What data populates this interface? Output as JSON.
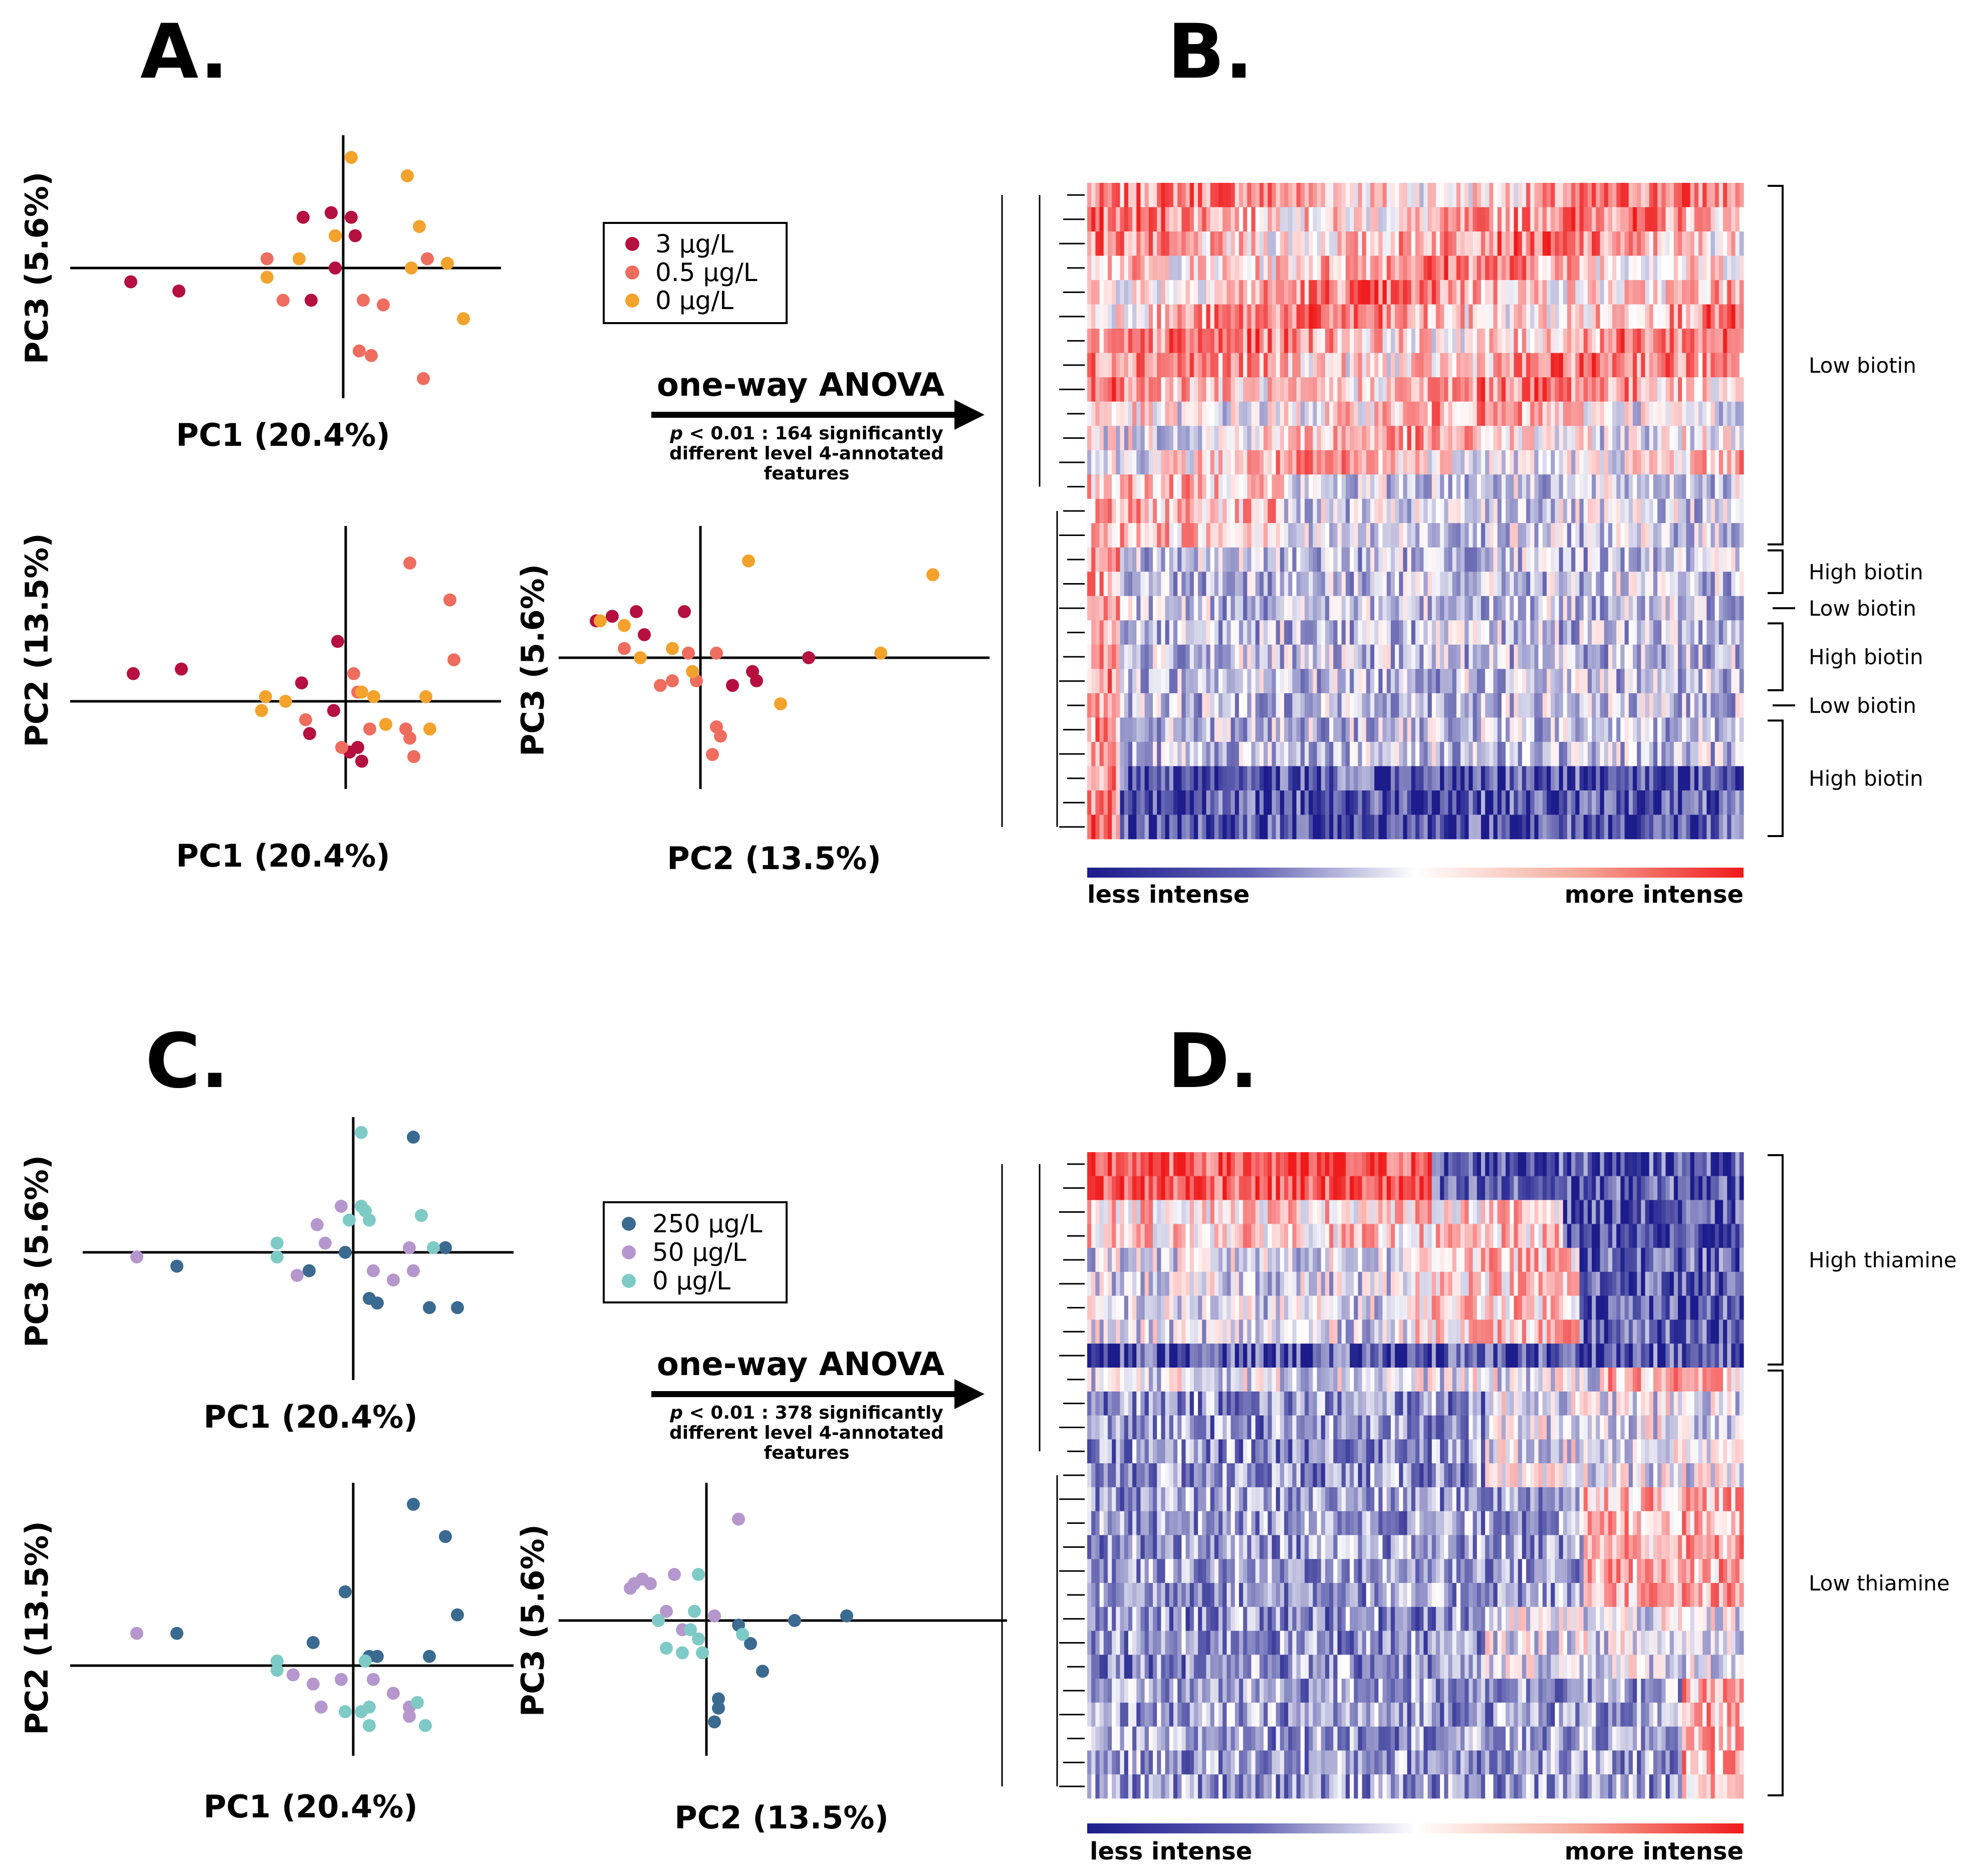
{
  "panels": {
    "A": {
      "label": "A."
    },
    "B": {
      "label": "B."
    },
    "C": {
      "label": "C."
    },
    "D": {
      "label": "D."
    }
  },
  "legend_biotin": [
    {
      "label": "3 µg/L",
      "color": "#b5103f"
    },
    {
      "label": "0.5 µg/L",
      "color": "#ee6d5f"
    },
    {
      "label": "0 µg/L",
      "color": "#f3a22c"
    }
  ],
  "legend_thiamine": [
    {
      "label": "250 µg/L",
      "color": "#3b6a90"
    },
    {
      "label": "50 µg/L",
      "color": "#b597cd"
    },
    {
      "label": "0 µg/L",
      "color": "#7ecac6"
    }
  ],
  "anova_top": {
    "title": "one-way ANOVA",
    "p": "p",
    "line1": " < 0.01 : 164 significantly",
    "line2": "different level 4-annotated",
    "line3": "features"
  },
  "anova_bottom": {
    "title": "one-way ANOVA",
    "p": "p",
    "line1": " < 0.01 : 378 significantly",
    "line2": "different level 4-annotated",
    "line3": "features"
  },
  "axis_labels": {
    "pc1": "PC1 (20.4%)",
    "pc2": "PC2 (13.5%)",
    "pc3": "PC3 (5.6%)"
  },
  "heatmap_B_groups": [
    "Low biotin",
    "High biotin",
    "Low biotin",
    "High biotin",
    "Low biotin",
    "High biotin"
  ],
  "heatmap_D_groups": [
    "High thiamine",
    "Low thiamine"
  ],
  "colorbar": {
    "low_label": "less intense",
    "high_label": "more intense",
    "low_color": "#1c1c8c",
    "mid_color": "#ffffff",
    "high_color": "#f01a1a"
  },
  "chart_data": [
    {
      "type": "scatter",
      "panel": "A",
      "xlabel": "PC1 (20.4%)",
      "ylabel": "PC3 (5.6%)",
      "series": [
        {
          "name": "3 µg/L",
          "points": [
            [
              -5.3,
              -0.3
            ],
            [
              -4.1,
              -0.5
            ],
            [
              -1.0,
              1.1
            ],
            [
              -0.8,
              -0.7
            ],
            [
              -0.3,
              1.2
            ],
            [
              -0.2,
              0.0
            ],
            [
              0.2,
              1.1
            ],
            [
              0.3,
              0.7
            ]
          ]
        },
        {
          "name": "0.5 µg/L",
          "points": [
            [
              -1.9,
              0.2
            ],
            [
              -1.5,
              -0.7
            ],
            [
              0.5,
              -0.7
            ],
            [
              0.4,
              -1.8
            ],
            [
              1.0,
              -0.8
            ],
            [
              2.0,
              -2.4
            ],
            [
              2.1,
              0.2
            ],
            [
              0.7,
              -1.9
            ]
          ]
        },
        {
          "name": "0 µg/L",
          "points": [
            [
              -1.9,
              -0.2
            ],
            [
              -1.1,
              0.2
            ],
            [
              0.2,
              2.4
            ],
            [
              -0.2,
              0.7
            ],
            [
              1.6,
              2.0
            ],
            [
              1.7,
              0.0
            ],
            [
              1.9,
              0.9
            ],
            [
              2.6,
              0.1
            ],
            [
              3.0,
              -1.1
            ]
          ]
        }
      ]
    },
    {
      "type": "scatter",
      "panel": "A",
      "xlabel": "PC1 (20.4%)",
      "ylabel": "PC2 (13.5%)",
      "series": [
        {
          "name": "3 µg/L",
          "points": [
            [
              -5.3,
              0.6
            ],
            [
              -4.1,
              0.7
            ],
            [
              -1.1,
              0.4
            ],
            [
              -0.2,
              1.3
            ],
            [
              -0.3,
              -0.2
            ],
            [
              -0.9,
              -0.7
            ],
            [
              0.3,
              -1.0
            ],
            [
              0.4,
              -1.3
            ],
            [
              0.1,
              -1.1
            ]
          ]
        },
        {
          "name": "0.5 µg/L",
          "points": [
            [
              -1.0,
              -0.4
            ],
            [
              -0.1,
              -1.0
            ],
            [
              0.2,
              0.6
            ],
            [
              0.6,
              -0.6
            ],
            [
              1.6,
              -0.8
            ],
            [
              1.7,
              -1.2
            ],
            [
              1.6,
              3.0
            ],
            [
              2.6,
              2.2
            ],
            [
              2.7,
              0.9
            ],
            [
              1.5,
              -0.6
            ],
            [
              0.3,
              0.2
            ]
          ]
        },
        {
          "name": "0 µg/L",
          "points": [
            [
              -2.0,
              0.1
            ],
            [
              -2.1,
              -0.2
            ],
            [
              -1.5,
              0.0
            ],
            [
              0.4,
              0.2
            ],
            [
              0.7,
              0.1
            ],
            [
              1.0,
              -0.5
            ],
            [
              2.0,
              0.1
            ],
            [
              2.1,
              -0.6
            ]
          ]
        }
      ]
    },
    {
      "type": "scatter",
      "panel": "A",
      "xlabel": "PC2 (13.5%)",
      "ylabel": "PC3 (5.6%)",
      "series": [
        {
          "name": "3 µg/L",
          "points": [
            [
              -2.6,
              0.8
            ],
            [
              -2.2,
              0.9
            ],
            [
              -1.6,
              1.0
            ],
            [
              -1.4,
              0.5
            ],
            [
              -0.4,
              1.0
            ],
            [
              0.8,
              -0.6
            ],
            [
              1.3,
              -0.3
            ],
            [
              1.4,
              -0.5
            ],
            [
              2.7,
              0.0
            ]
          ]
        },
        {
          "name": "0.5 µg/L",
          "points": [
            [
              -1.9,
              0.2
            ],
            [
              -1.0,
              -0.6
            ],
            [
              -0.7,
              -0.5
            ],
            [
              -0.1,
              -0.5
            ],
            [
              -0.3,
              0.1
            ],
            [
              0.4,
              0.1
            ],
            [
              0.4,
              -1.5
            ],
            [
              0.5,
              -1.7
            ],
            [
              0.3,
              -2.1
            ]
          ]
        },
        {
          "name": "0 µg/L",
          "points": [
            [
              -2.5,
              0.8
            ],
            [
              -1.9,
              0.7
            ],
            [
              -1.5,
              0.0
            ],
            [
              -0.7,
              0.2
            ],
            [
              -0.2,
              -0.3
            ],
            [
              1.2,
              2.1
            ],
            [
              2.0,
              -1.0
            ],
            [
              4.5,
              0.1
            ],
            [
              5.8,
              1.8
            ]
          ]
        }
      ]
    },
    {
      "type": "heatmap",
      "panel": "B",
      "rows": 27,
      "colorscale": [
        "less intense",
        "more intense"
      ],
      "row_groups": [
        {
          "label": "Low biotin",
          "rows": 15
        },
        {
          "label": "High biotin",
          "rows": 2
        },
        {
          "label": "Low biotin",
          "rows": 1
        },
        {
          "label": "High biotin",
          "rows": 3
        },
        {
          "label": "Low biotin",
          "rows": 1
        },
        {
          "label": "High biotin",
          "rows": 5
        }
      ]
    },
    {
      "type": "scatter",
      "panel": "C",
      "xlabel": "PC1 (20.4%)",
      "ylabel": "PC3 (5.6%)",
      "series": [
        {
          "name": "250 µg/L",
          "points": [
            [
              -4.4,
              -0.3
            ],
            [
              -1.1,
              -0.4
            ],
            [
              -0.2,
              0.0
            ],
            [
              0.4,
              -1.0
            ],
            [
              0.6,
              -1.1
            ],
            [
              1.5,
              2.5
            ],
            [
              2.3,
              0.1
            ],
            [
              2.6,
              -1.2
            ],
            [
              1.9,
              -1.2
            ]
          ]
        },
        {
          "name": "50 µg/L",
          "points": [
            [
              -5.4,
              -0.1
            ],
            [
              -1.4,
              -0.5
            ],
            [
              -0.9,
              0.6
            ],
            [
              -0.7,
              0.2
            ],
            [
              -0.3,
              1.0
            ],
            [
              1.4,
              0.1
            ],
            [
              1.0,
              -0.6
            ],
            [
              1.5,
              -0.4
            ],
            [
              0.5,
              -0.4
            ]
          ]
        },
        {
          "name": "0 µg/L",
          "points": [
            [
              -1.9,
              0.2
            ],
            [
              -1.9,
              -0.1
            ],
            [
              -0.1,
              0.7
            ],
            [
              0.2,
              1.0
            ],
            [
              0.3,
              0.9
            ],
            [
              0.4,
              0.7
            ],
            [
              0.2,
              2.6
            ],
            [
              1.7,
              0.8
            ],
            [
              2.0,
              0.1
            ]
          ]
        }
      ]
    },
    {
      "type": "scatter",
      "panel": "C",
      "xlabel": "PC1 (20.4%)",
      "ylabel": "PC2 (13.5%)",
      "series": [
        {
          "name": "250 µg/L",
          "points": [
            [
              -4.4,
              0.7
            ],
            [
              -1.0,
              0.5
            ],
            [
              -0.2,
              1.6
            ],
            [
              0.4,
              0.2
            ],
            [
              0.6,
              0.2
            ],
            [
              1.5,
              3.5
            ],
            [
              1.9,
              0.2
            ],
            [
              2.3,
              2.8
            ],
            [
              2.6,
              1.1
            ]
          ]
        },
        {
          "name": "50 µg/L",
          "points": [
            [
              -5.4,
              0.7
            ],
            [
              -1.5,
              -0.2
            ],
            [
              -1.0,
              -0.4
            ],
            [
              -0.8,
              -0.9
            ],
            [
              -0.3,
              -0.3
            ],
            [
              0.5,
              -0.3
            ],
            [
              1.0,
              -0.6
            ],
            [
              1.4,
              -0.9
            ],
            [
              1.4,
              -1.1
            ]
          ]
        },
        {
          "name": "0 µg/L",
          "points": [
            [
              -1.9,
              0.1
            ],
            [
              -1.9,
              -0.1
            ],
            [
              -0.2,
              -1.0
            ],
            [
              0.2,
              -1.0
            ],
            [
              0.3,
              0.1
            ],
            [
              0.4,
              -0.9
            ],
            [
              0.4,
              -1.3
            ],
            [
              1.6,
              -0.8
            ],
            [
              1.8,
              -1.3
            ]
          ]
        }
      ]
    },
    {
      "type": "scatter",
      "panel": "C",
      "xlabel": "PC2 (13.5%)",
      "ylabel": "PC3 (5.6%)",
      "series": [
        {
          "name": "250 µg/L",
          "points": [
            [
              0.8,
              -0.1
            ],
            [
              1.1,
              -0.5
            ],
            [
              1.4,
              -1.1
            ],
            [
              0.3,
              -1.7
            ],
            [
              0.3,
              -1.9
            ],
            [
              0.2,
              -2.2
            ],
            [
              2.2,
              0.0
            ],
            [
              3.5,
              0.1
            ]
          ]
        },
        {
          "name": "50 µg/L",
          "points": [
            [
              -1.9,
              0.7
            ],
            [
              -1.8,
              0.8
            ],
            [
              -1.6,
              0.9
            ],
            [
              -1.4,
              0.8
            ],
            [
              -1.0,
              0.2
            ],
            [
              -0.8,
              1.0
            ],
            [
              -0.6,
              -0.2
            ],
            [
              0.2,
              0.1
            ],
            [
              0.8,
              2.2
            ]
          ]
        },
        {
          "name": "0 µg/L",
          "points": [
            [
              -1.2,
              0.0
            ],
            [
              -1.0,
              -0.6
            ],
            [
              -0.6,
              -0.7
            ],
            [
              -0.4,
              -0.2
            ],
            [
              -0.3,
              0.2
            ],
            [
              -0.2,
              1.0
            ],
            [
              -0.2,
              -0.4
            ],
            [
              -0.1,
              -0.7
            ],
            [
              0.9,
              -0.3
            ]
          ]
        }
      ]
    },
    {
      "type": "heatmap",
      "panel": "D",
      "rows": 27,
      "colorscale": [
        "less intense",
        "more intense"
      ],
      "row_groups": [
        {
          "label": "High thiamine",
          "rows": 9
        },
        {
          "label": "Low thiamine",
          "rows": 18
        }
      ]
    }
  ]
}
